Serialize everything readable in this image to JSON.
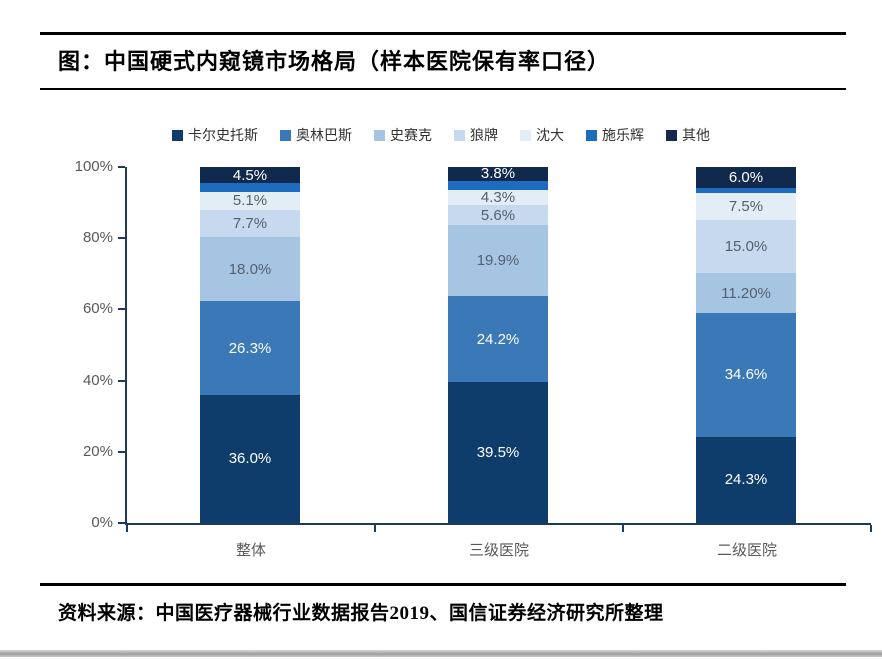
{
  "page": {
    "title": "图：中国硬式内窥镜市场格局（样本医院保有率口径）",
    "source": "资料来源：中国医疗器械行业数据报告2019、国信证券经济研究所整理"
  },
  "chart_data": {
    "type": "bar",
    "stacked": true,
    "title": "中国硬式内窥镜市场格局（样本医院保有率口径）",
    "categories": [
      "整体",
      "三级医院",
      "二级医院"
    ],
    "y_ticks": [
      "0%",
      "20%",
      "40%",
      "60%",
      "80%",
      "100%"
    ],
    "ylim": [
      0,
      100
    ],
    "grid": false,
    "legend_position": "top",
    "series": [
      {
        "name": "卡尔史托斯",
        "color": "#0e3d6c",
        "label_color": "#ffffff",
        "values": [
          36.0,
          39.5,
          24.3
        ],
        "labels": [
          "36.0%",
          "39.5%",
          "24.3%"
        ]
      },
      {
        "name": "奥林巴斯",
        "color": "#3a78b7",
        "label_color": "#ffffff",
        "values": [
          26.3,
          24.2,
          34.6
        ],
        "labels": [
          "26.3%",
          "24.2%",
          "34.6%"
        ]
      },
      {
        "name": "史赛克",
        "color": "#a6c5e3",
        "label_color": "#55606e",
        "values": [
          18.0,
          19.9,
          11.2
        ],
        "labels": [
          "18.0%",
          "19.9%",
          "11.20%"
        ]
      },
      {
        "name": "狼牌",
        "color": "#c6d9ee",
        "label_color": "#55606e",
        "values": [
          7.7,
          5.6,
          15.0
        ],
        "labels": [
          "7.7%",
          "5.6%",
          "15.0%"
        ]
      },
      {
        "name": "沈大",
        "color": "#e3edf6",
        "label_color": "#55606e",
        "values": [
          5.1,
          4.3,
          7.5
        ],
        "labels": [
          "5.1%",
          "4.3%",
          "7.5%"
        ]
      },
      {
        "name": "施乐辉",
        "color": "#1e6cc0",
        "label_color": "#ffffff",
        "values": [
          2.4,
          2.7,
          1.4
        ],
        "labels": [
          "",
          "",
          ""
        ]
      },
      {
        "name": "其他",
        "color": "#10294d",
        "label_color": "#ffffff",
        "values": [
          4.5,
          3.8,
          6.0
        ],
        "labels": [
          "4.5%",
          "3.8%",
          "6.0%"
        ]
      }
    ]
  },
  "colors": {
    "axis": "#1f3a5f",
    "tick_label": "#595959",
    "rule": "#000000",
    "bottom_strip": "#b0b0b0"
  }
}
